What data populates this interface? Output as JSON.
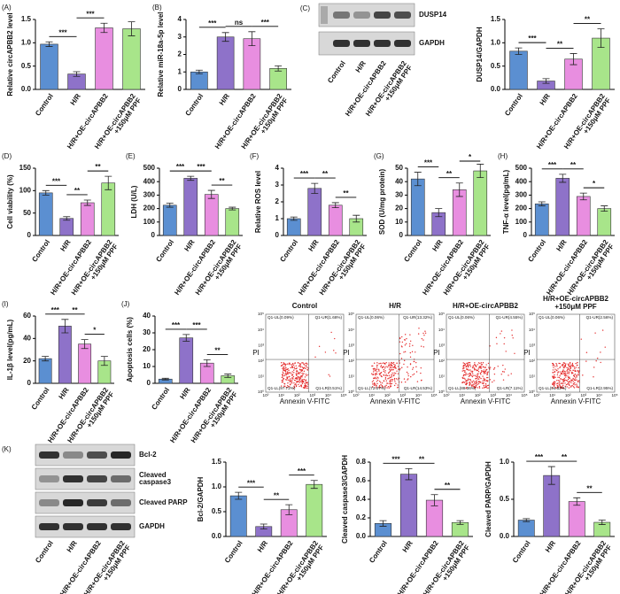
{
  "chart_data": [
    {
      "type": "bar",
      "panel": "(A)",
      "ylabel": "Relative circAPBB2 level",
      "categories": [
        "Control",
        "H/R",
        "H/R+OE-circAPBB2",
        [
          "H/R+OE-circAPBB2",
          "+150μM PPF"
        ]
      ],
      "values": [
        0.97,
        0.33,
        1.32,
        1.3
      ],
      "errors": [
        0.05,
        0.05,
        0.1,
        0.15
      ],
      "colors": [
        "#5b8fd1",
        "#8e72c9",
        "#e88ee0",
        "#a8e58a"
      ],
      "ylim": [
        0,
        1.5
      ],
      "yticks": [
        {
          "value": 0,
          "label": "0.0"
        },
        {
          "value": 0.5,
          "label": "0.5"
        },
        {
          "value": 1,
          "label": "1.0"
        },
        {
          "value": 1.5,
          "label": "1.5"
        }
      ],
      "significance": [
        {
          "pair": [
            0,
            1
          ],
          "label": "***"
        },
        {
          "pair": [
            1,
            2
          ],
          "label": "***"
        }
      ]
    },
    {
      "type": "bar",
      "panel": "(B)",
      "ylabel": "Relative miR-18a-5p level",
      "categories": [
        "Control",
        "H/R",
        "H/R+OE-circAPBB2",
        [
          "H/R+OE-circAPBB2",
          "+150μM PPF"
        ]
      ],
      "values": [
        1.0,
        3.0,
        2.9,
        1.2
      ],
      "errors": [
        0.1,
        0.25,
        0.4,
        0.15
      ],
      "colors": [
        "#5b8fd1",
        "#8e72c9",
        "#e88ee0",
        "#a8e58a"
      ],
      "ylim": [
        0,
        4
      ],
      "yticks": [
        0,
        1,
        2,
        3,
        4
      ],
      "significance": [
        {
          "pair": [
            0,
            1
          ],
          "label": "***"
        },
        {
          "pair": [
            1,
            2
          ],
          "label": "ns"
        },
        {
          "pair": [
            2,
            3
          ],
          "label": "***"
        }
      ]
    },
    {
      "type": "bar",
      "ylabel": "DUSP14/GAPDH",
      "categories": [
        "Control",
        "H/R",
        "H/R+OE-circAPBB2",
        [
          "H/R+OE-circAPBB2",
          "+150μM PPF"
        ]
      ],
      "values": [
        0.82,
        0.18,
        0.65,
        1.1
      ],
      "errors": [
        0.07,
        0.05,
        0.12,
        0.2
      ],
      "colors": [
        "#5b8fd1",
        "#8e72c9",
        "#e88ee0",
        "#a8e58a"
      ],
      "ylim": [
        0,
        1.5
      ],
      "yticks": [
        {
          "value": 0,
          "label": "0.0"
        },
        {
          "value": 0.5,
          "label": "0.5"
        },
        {
          "value": 1,
          "label": "1.0"
        },
        {
          "value": 1.5,
          "label": "1.5"
        }
      ],
      "significance": [
        {
          "pair": [
            0,
            1
          ],
          "label": "***"
        },
        {
          "pair": [
            1,
            2
          ],
          "label": "**"
        },
        {
          "pair": [
            2,
            3
          ],
          "label": "**"
        }
      ]
    },
    {
      "type": "bar",
      "panel": "(D)",
      "ylabel": "Cell viability (%)",
      "categories": [
        "Control",
        "H/R",
        "H/R+OE-circAPBB2",
        [
          "H/R+OE-circAPBB2",
          "+150μM PPF"
        ]
      ],
      "values": [
        95,
        38,
        73,
        117
      ],
      "errors": [
        5,
        4,
        6,
        15
      ],
      "colors": [
        "#5b8fd1",
        "#8e72c9",
        "#e88ee0",
        "#a8e58a"
      ],
      "ylim": [
        0,
        150
      ],
      "yticks": [
        0,
        50,
        100,
        150
      ],
      "significance": [
        {
          "pair": [
            0,
            1
          ],
          "label": "***"
        },
        {
          "pair": [
            1,
            2
          ],
          "label": "**"
        },
        {
          "pair": [
            2,
            3
          ],
          "label": "**"
        }
      ]
    },
    {
      "type": "bar",
      "panel": "(E)",
      "ylabel": "LDH (U/L)",
      "categories": [
        "Control",
        "H/R",
        "H/R+OE-circAPBB2",
        [
          "H/R+OE-circAPBB2",
          "+150μM PPF"
        ]
      ],
      "values": [
        225,
        425,
        305,
        200
      ],
      "errors": [
        15,
        15,
        30,
        10
      ],
      "colors": [
        "#5b8fd1",
        "#8e72c9",
        "#e88ee0",
        "#a8e58a"
      ],
      "ylim": [
        0,
        500
      ],
      "yticks": [
        0,
        100,
        200,
        300,
        400,
        500
      ],
      "significance": [
        {
          "pair": [
            0,
            1
          ],
          "label": "***"
        },
        {
          "pair": [
            1,
            2
          ],
          "label": "***"
        },
        {
          "pair": [
            2,
            3
          ],
          "label": "**"
        }
      ]
    },
    {
      "type": "bar",
      "panel": "(F)",
      "ylabel": "Relative ROS level",
      "categories": [
        "Control",
        "H/R",
        "H/R+OE-circAPBB2",
        [
          "H/R+OE-circAPBB2",
          "+150μM PPF"
        ]
      ],
      "values": [
        1.0,
        2.8,
        1.8,
        1.0
      ],
      "errors": [
        0.1,
        0.3,
        0.15,
        0.2
      ],
      "colors": [
        "#5b8fd1",
        "#8e72c9",
        "#e88ee0",
        "#a8e58a"
      ],
      "ylim": [
        0,
        4
      ],
      "yticks": [
        0,
        1,
        2,
        3,
        4
      ],
      "significance": [
        {
          "pair": [
            0,
            1
          ],
          "label": "***"
        },
        {
          "pair": [
            1,
            2
          ],
          "label": "**"
        },
        {
          "pair": [
            2,
            3
          ],
          "label": "**"
        }
      ]
    },
    {
      "type": "bar",
      "panel": "(G)",
      "ylabel": "SOD (U/mg protein)",
      "categories": [
        "Control",
        "H/R",
        "H/R+OE-circAPBB2",
        [
          "H/R+OE-circAPBB2",
          "+150μM PPF"
        ]
      ],
      "values": [
        42,
        17,
        34,
        48
      ],
      "errors": [
        5,
        3,
        5,
        5
      ],
      "colors": [
        "#5b8fd1",
        "#8e72c9",
        "#e88ee0",
        "#a8e58a"
      ],
      "ylim": [
        0,
        50
      ],
      "yticks": [
        0,
        10,
        20,
        30,
        40,
        50
      ],
      "significance": [
        {
          "pair": [
            0,
            1
          ],
          "label": "***"
        },
        {
          "pair": [
            1,
            2
          ],
          "label": "**"
        },
        {
          "pair": [
            2,
            3
          ],
          "label": "*"
        }
      ]
    },
    {
      "type": "bar",
      "panel": "(H)",
      "ylabel": "TNF-α level(pg/mL)",
      "categories": [
        "Control",
        "H/R",
        "H/R+OE-circAPBB2",
        [
          "H/R+OE-circAPBB2",
          "+150μM PPF"
        ]
      ],
      "values": [
        235,
        425,
        290,
        200
      ],
      "errors": [
        15,
        30,
        25,
        20
      ],
      "colors": [
        "#5b8fd1",
        "#8e72c9",
        "#e88ee0",
        "#a8e58a"
      ],
      "ylim": [
        0,
        500
      ],
      "yticks": [
        0,
        100,
        200,
        300,
        400,
        500
      ],
      "significance": [
        {
          "pair": [
            0,
            1
          ],
          "label": "***"
        },
        {
          "pair": [
            1,
            2
          ],
          "label": "**"
        },
        {
          "pair": [
            2,
            3
          ],
          "label": "*"
        }
      ]
    },
    {
      "type": "bar",
      "panel": "(I)",
      "ylabel": "IL-1β level(pg/mL)",
      "categories": [
        "Control",
        "H/R",
        "H/R+OE-circAPBB2",
        [
          "H/R+OE-circAPBB2",
          "+150μM PPF"
        ]
      ],
      "values": [
        22,
        51,
        35,
        20
      ],
      "errors": [
        2,
        6,
        4,
        4
      ],
      "colors": [
        "#5b8fd1",
        "#8e72c9",
        "#e88ee0",
        "#a8e58a"
      ],
      "ylim": [
        0,
        60
      ],
      "yticks": [
        0,
        20,
        40,
        60
      ],
      "significance": [
        {
          "pair": [
            0,
            1
          ],
          "label": "***"
        },
        {
          "pair": [
            1,
            2
          ],
          "label": "**"
        },
        {
          "pair": [
            2,
            3
          ],
          "label": "*"
        }
      ]
    },
    {
      "type": "bar",
      "panel": "(J)",
      "ylabel": "Apoptosis cells (%)",
      "categories": [
        "Control",
        "H/R",
        "H/R+OE-circAPBB2",
        [
          "H/R+OE-circAPBB2",
          "+150μM PPF"
        ]
      ],
      "values": [
        2.5,
        27,
        12,
        4.5
      ],
      "errors": [
        0.5,
        2,
        2,
        1
      ],
      "colors": [
        "#5b8fd1",
        "#8e72c9",
        "#e88ee0",
        "#a8e58a"
      ],
      "ylim": [
        0,
        40
      ],
      "yticks": [
        0,
        10,
        20,
        30,
        40
      ],
      "significance": [
        {
          "pair": [
            0,
            1
          ],
          "label": "***"
        },
        {
          "pair": [
            1,
            2
          ],
          "label": "***"
        },
        {
          "pair": [
            2,
            3
          ],
          "label": "**"
        }
      ]
    },
    {
      "type": "bar",
      "ylabel": "Bcl-2/GAPDH",
      "categories": [
        "Control",
        "H/R",
        "H/R+OE-circAPBB2",
        [
          "H/R+OE-circAPBB2",
          "+150μM PPF"
        ]
      ],
      "values": [
        0.82,
        0.2,
        0.54,
        1.05
      ],
      "errors": [
        0.07,
        0.05,
        0.1,
        0.08
      ],
      "colors": [
        "#5b8fd1",
        "#8e72c9",
        "#e88ee0",
        "#a8e58a"
      ],
      "ylim": [
        0,
        1.5
      ],
      "yticks": [
        {
          "value": 0,
          "label": "0.0"
        },
        {
          "value": 0.5,
          "label": "0.5"
        },
        {
          "value": 1,
          "label": "1.0"
        },
        {
          "value": 1.5,
          "label": "1.5"
        }
      ],
      "significance": [
        {
          "pair": [
            0,
            1
          ],
          "label": "***"
        },
        {
          "pair": [
            1,
            2
          ],
          "label": "**"
        },
        {
          "pair": [
            2,
            3
          ],
          "label": "***"
        }
      ]
    },
    {
      "type": "bar",
      "ylabel": "Cleaved caspase3/GAPDH",
      "categories": [
        "Control",
        "H/R",
        "H/R+OE-circAPBB2",
        [
          "H/R+OE-circAPBB2",
          "+150μM PPF"
        ]
      ],
      "values": [
        0.14,
        0.67,
        0.39,
        0.15
      ],
      "errors": [
        0.03,
        0.06,
        0.06,
        0.02
      ],
      "colors": [
        "#5b8fd1",
        "#8e72c9",
        "#e88ee0",
        "#a8e58a"
      ],
      "ylim": [
        0,
        0.8
      ],
      "yticks": [
        {
          "value": 0,
          "label": "0.0"
        },
        {
          "value": 0.2,
          "label": "0.2"
        },
        {
          "value": 0.4,
          "label": "0.4"
        },
        {
          "value": 0.6,
          "label": "0.6"
        },
        {
          "value": 0.8,
          "label": "0.8"
        }
      ],
      "significance": [
        {
          "pair": [
            0,
            1
          ],
          "label": "***"
        },
        {
          "pair": [
            1,
            2
          ],
          "label": "**"
        },
        {
          "pair": [
            2,
            3
          ],
          "label": "**"
        }
      ]
    },
    {
      "type": "bar",
      "ylabel": "Cleaved PARP/GAPDH",
      "categories": [
        "Control",
        "H/R",
        "H/R+OE-circAPBB2",
        [
          "H/R+OE-circAPBB2",
          "+150μM PPF"
        ]
      ],
      "values": [
        0.22,
        0.82,
        0.47,
        0.19
      ],
      "errors": [
        0.02,
        0.12,
        0.05,
        0.03
      ],
      "colors": [
        "#5b8fd1",
        "#8e72c9",
        "#e88ee0",
        "#a8e58a"
      ],
      "ylim": [
        0,
        1
      ],
      "yticks": [
        {
          "value": 0,
          "label": "0.0"
        },
        {
          "value": 0.5,
          "label": "0.5"
        },
        {
          "value": 1,
          "label": "1.0"
        }
      ],
      "significance": [
        {
          "pair": [
            0,
            1
          ],
          "label": "***"
        },
        {
          "pair": [
            1,
            2
          ],
          "label": "**"
        },
        {
          "pair": [
            2,
            3
          ],
          "label": "**"
        }
      ]
    }
  ],
  "blots": [
    {
      "panel": "(C)",
      "proteins": [
        "DUSP14",
        "GAPDH"
      ],
      "lanes": [
        "Control",
        "H/R",
        "H/R+OE-circAPBB2",
        [
          "H/R+OE-circAPBB2",
          "+150μM PPF"
        ]
      ]
    },
    {
      "panel": "(K)",
      "proteins": [
        "Bcl-2",
        [
          "Cleaved",
          "caspase3"
        ],
        "Cleaved PARP",
        "GAPDH"
      ],
      "lanes": [
        "Control",
        "H/R",
        "H/R+OE-circAPBB2",
        [
          "H/R+OE-circAPBB2",
          "+150μM PPF"
        ]
      ]
    }
  ],
  "flow": {
    "xlabel": "Annexin V-FITC",
    "ylabel": "PI",
    "ticks": [
      "10⁰",
      "10¹",
      "10²",
      "10³",
      "10⁴",
      "10⁵"
    ],
    "plots": [
      {
        "title": [
          "Control"
        ],
        "quadrants": [
          "Q1-UL(0.09%)",
          "Q1-UR(1.68%)",
          "Q1-LL(97.72%)",
          "Q1-LR(0.51%)"
        ]
      },
      {
        "title": [
          "H/R"
        ],
        "quadrants": [
          "Q1-UL(0.06%)",
          "Q1-UR(13.32%)",
          "Q1-LL(72.07%)",
          "Q1-LR(14.53%)"
        ]
      },
      {
        "title": [
          "H/R+OE-circAPBB2"
        ],
        "quadrants": [
          "Q1-UL(0.06%)",
          "Q1-UR(4.55%)",
          "Q1-LL(88.36%)",
          "Q1-LR(7.11%)"
        ]
      },
      {
        "title": [
          "H/R+OE-circAPBB2",
          "+150μM PPF"
        ],
        "quadrants": [
          "Q1-UL(0.06%)",
          "Q1-UR(2.56%)",
          "Q1-LL(94.52%)",
          "Q1-LR(2.95%)"
        ]
      }
    ]
  }
}
